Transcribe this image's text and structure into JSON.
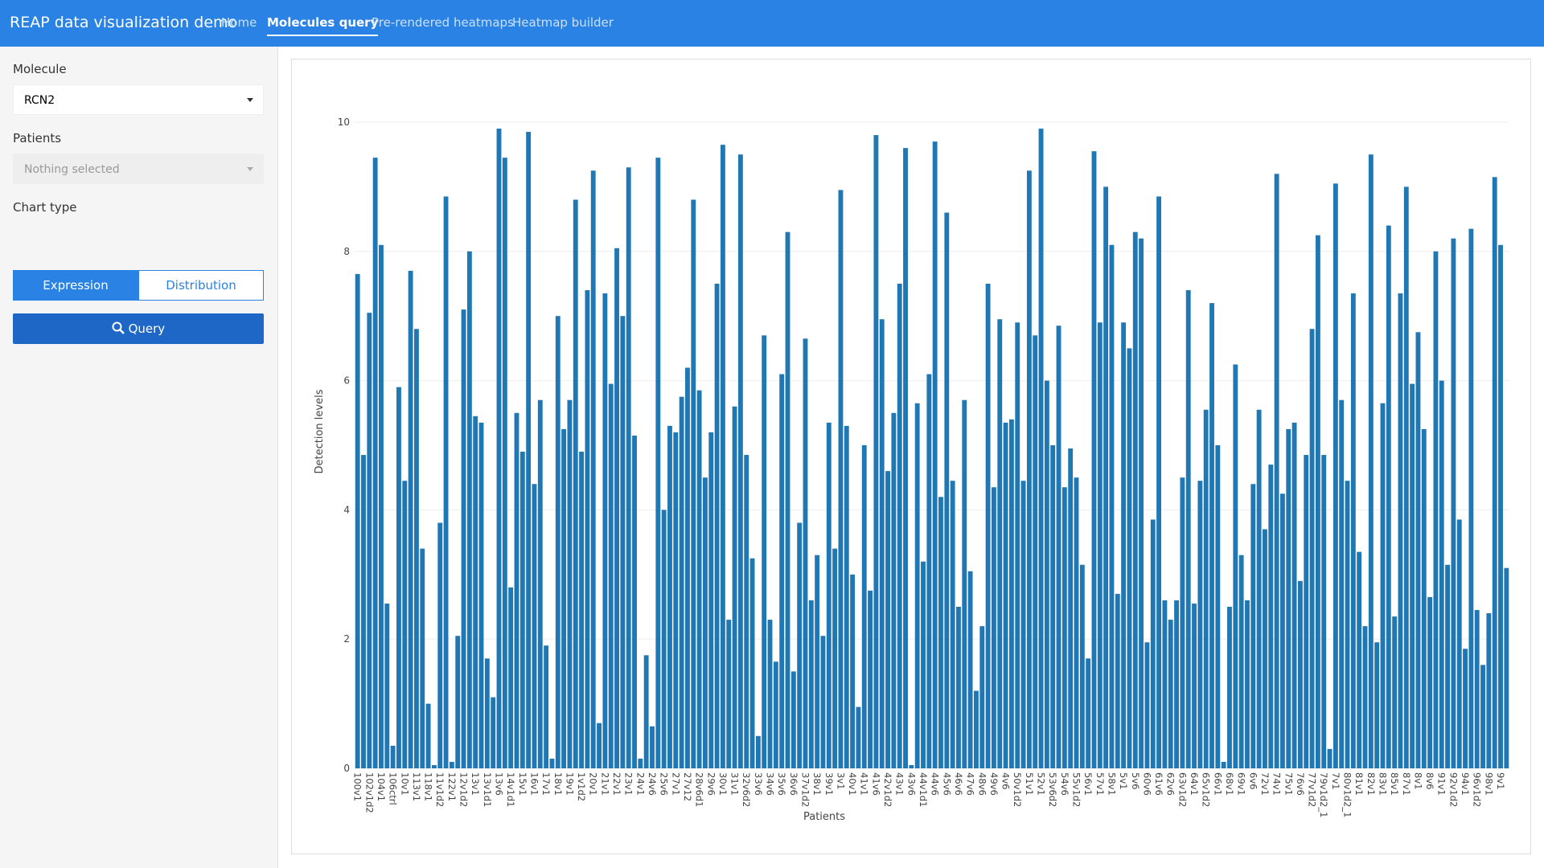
{
  "navbar": {
    "brand": "REAP data visualization demo",
    "items": [
      "Home",
      "Molecules query",
      "Pre-rendered heatmaps",
      "Heatmap builder"
    ]
  },
  "sidebar": {
    "molecule_label": "Molecule",
    "molecule_value": "RCN2",
    "patients_label": "Patients",
    "patients_placeholder": "Nothing selected",
    "chart_type_label": "Chart type",
    "chart_types": [
      "Expression",
      "Distribution"
    ],
    "query_button": "Query"
  },
  "chart_data": {
    "type": "bar",
    "color": "#1f77b4",
    "grid": true,
    "xlabel": "Patients",
    "ylabel": "Detection levels",
    "ylim": [
      0,
      10
    ],
    "yticks": [
      0,
      2,
      4,
      6,
      8,
      10
    ],
    "categories": [
      "100v1",
      null,
      "102v1d2",
      null,
      "104v1",
      null,
      "106ctrl",
      null,
      "10v1",
      null,
      "113v1",
      null,
      "118v1",
      null,
      "11v1d2",
      null,
      "122v1",
      null,
      "12v1d2",
      null,
      "13v1",
      null,
      "13v1d1",
      null,
      "13v6",
      null,
      "14v1d1",
      null,
      "15v1",
      null,
      "16v1",
      null,
      "17v1",
      null,
      "18v1",
      null,
      "19v1",
      null,
      "1v1d2",
      null,
      "20v1",
      null,
      "21v1",
      null,
      "22v1",
      null,
      "23v1",
      null,
      "24v1",
      null,
      "24v6",
      null,
      "25v6",
      null,
      "27v1",
      null,
      "27v12",
      null,
      "28v6d1",
      null,
      "29v6",
      null,
      "30v1",
      null,
      "31v1",
      null,
      "32v6d2",
      null,
      "33v6",
      null,
      "34v6",
      null,
      "35v6",
      null,
      "36v6",
      null,
      "37v1d2",
      null,
      "38v1",
      null,
      "39v1",
      null,
      "3v1",
      null,
      "40v1",
      null,
      "41v1",
      null,
      "41v6",
      null,
      "42v1d2",
      null,
      "43v1",
      null,
      "43v6",
      null,
      "44v1d1",
      null,
      "44v6",
      null,
      "45v6",
      null,
      "46v6",
      null,
      "47v6",
      null,
      "48v6",
      null,
      "49v6",
      null,
      "4v6",
      null,
      "50v1d2",
      null,
      "51v1",
      null,
      "52v1",
      null,
      "53v6d2",
      null,
      "54v6",
      null,
      "55v1d2",
      null,
      "56v1",
      null,
      "57v1",
      null,
      "58v1",
      null,
      "5v1",
      null,
      "5v6",
      null,
      "60v6",
      null,
      "61v6",
      null,
      "62v6",
      null,
      "63v1d2",
      null,
      "64v1",
      null,
      "65v1d2",
      null,
      "66v1",
      null,
      "68v1",
      null,
      "69v1",
      null,
      "6v6",
      null,
      "72v1",
      null,
      "74v1",
      null,
      "75v1",
      null,
      "76v6",
      null,
      "77v1d2",
      null,
      "79v1d2_1",
      null,
      "7v1",
      null,
      "80v1d2_1",
      null,
      "81v1",
      null,
      "82v1",
      null,
      "83v1",
      null,
      "85v1",
      null,
      "87v1",
      null,
      "8v1",
      null,
      "8v6",
      null,
      "91v1",
      null,
      "92v1d2",
      null,
      "94v1",
      null,
      "96v1d2",
      null,
      "98v1",
      null,
      "9v1",
      null
    ],
    "values": [
      7.65,
      4.85,
      7.05,
      9.45,
      8.1,
      2.55,
      0.35,
      5.9,
      4.45,
      7.7,
      6.8,
      3.4,
      1.0,
      0.05,
      3.8,
      8.85,
      0.1,
      2.05,
      7.1,
      8.0,
      5.45,
      5.35,
      1.7,
      1.1,
      9.9,
      9.45,
      2.8,
      5.5,
      4.9,
      9.85,
      4.4,
      5.7,
      1.9,
      0.15,
      7.0,
      5.25,
      5.7,
      8.8,
      4.9,
      7.4,
      9.25,
      0.7,
      7.35,
      5.95,
      8.05,
      7.0,
      9.3,
      5.15,
      0.15,
      1.75,
      0.65,
      9.45,
      4.0,
      5.3,
      5.2,
      5.75,
      6.2,
      8.8,
      5.85,
      4.5,
      5.2,
      7.5,
      9.65,
      2.3,
      5.6,
      9.5,
      4.85,
      3.25,
      0.5,
      6.7,
      2.3,
      1.65,
      6.1,
      8.3,
      1.5,
      3.8,
      6.65,
      2.6,
      3.3,
      2.05,
      5.35,
      3.4,
      8.95,
      5.3,
      3.0,
      0.95,
      5.0,
      2.75,
      9.8,
      6.95,
      4.6,
      5.5,
      7.5,
      9.6,
      0.05,
      5.65,
      3.2,
      6.1,
      9.7,
      4.2,
      8.6,
      4.45,
      2.5,
      5.7,
      3.05,
      1.2,
      2.2,
      7.5,
      4.35,
      6.95,
      5.35,
      5.4,
      6.9,
      4.45,
      9.25,
      6.7,
      9.9,
      6.0,
      5.0,
      6.85,
      4.35,
      4.95,
      4.5,
      3.15,
      1.7,
      9.55,
      6.9,
      9.0,
      8.1,
      2.7,
      6.9,
      6.5,
      8.3,
      8.2,
      1.95,
      3.85,
      8.85,
      2.6,
      2.3,
      2.6,
      4.5,
      7.4,
      2.55,
      4.45,
      5.55,
      7.2,
      5.0,
      0.1,
      2.5,
      6.25,
      3.3,
      2.6,
      4.4,
      5.55,
      3.7,
      4.7,
      9.2,
      4.25,
      5.25,
      5.35,
      2.9,
      4.85,
      6.8,
      8.25,
      4.85,
      0.3,
      9.05,
      5.7,
      4.45,
      7.35,
      3.35,
      2.2,
      9.5,
      1.95,
      5.65,
      8.4,
      2.35,
      7.35,
      9.0,
      5.95,
      6.75,
      5.25,
      2.65,
      8.0,
      6.0,
      3.15,
      8.2,
      3.85,
      1.85,
      8.35,
      2.45,
      1.6,
      2.4,
      9.15,
      8.1,
      3.1
    ]
  }
}
